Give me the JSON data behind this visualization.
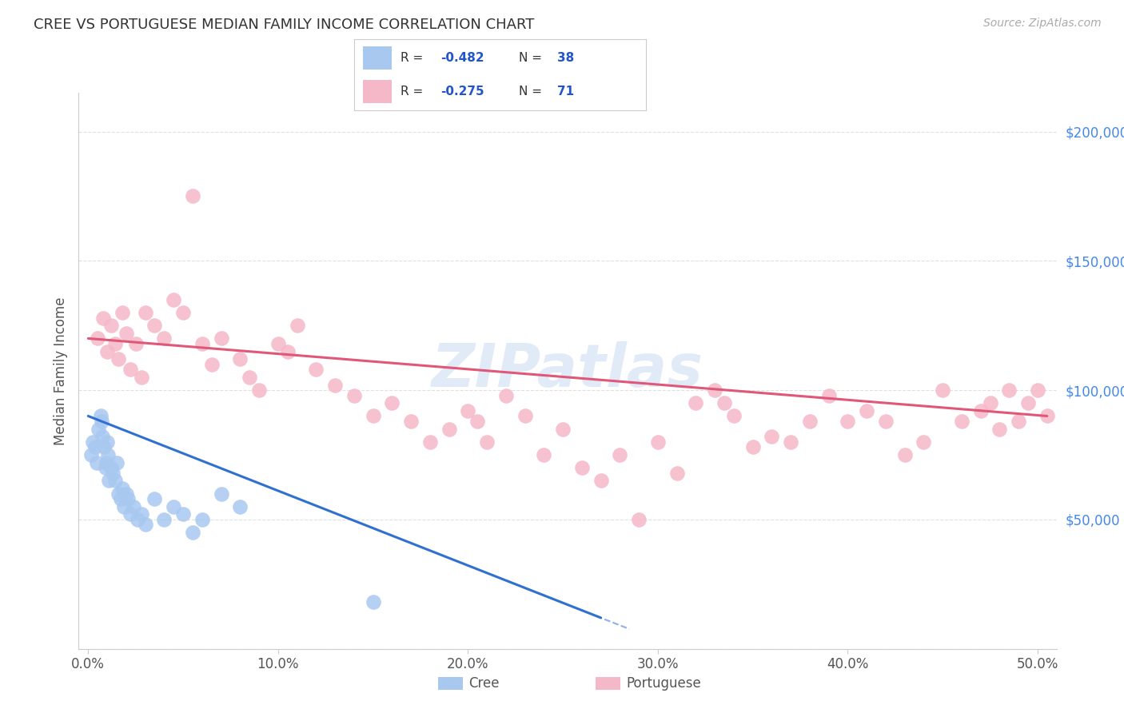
{
  "title": "CREE VS PORTUGUESE MEDIAN FAMILY INCOME CORRELATION CHART",
  "source": "Source: ZipAtlas.com",
  "ylabel": "Median Family Income",
  "xlabel_ticks": [
    "0.0%",
    "10.0%",
    "20.0%",
    "30.0%",
    "40.0%",
    "50.0%"
  ],
  "xlabel_vals": [
    0.0,
    10.0,
    20.0,
    30.0,
    40.0,
    50.0
  ],
  "ytick_vals": [
    0,
    50000,
    100000,
    150000,
    200000
  ],
  "ytick_labels": [
    "",
    "$50,000",
    "$100,000",
    "$150,000",
    "$200,000"
  ],
  "xlim": [
    -0.5,
    51
  ],
  "ylim": [
    0,
    215000
  ],
  "cree_R": -0.482,
  "cree_N": 38,
  "port_R": -0.275,
  "port_N": 71,
  "cree_color": "#a8c8f0",
  "port_color": "#f5b8c8",
  "cree_line_color": "#3070d0",
  "port_line_color": "#e05878",
  "legend_R_color": "#2255cc",
  "watermark": "ZIPatlas",
  "bg_color": "#ffffff",
  "grid_color": "#e0e0e0",
  "cree_x": [
    0.15,
    0.25,
    0.35,
    0.45,
    0.55,
    0.65,
    0.7,
    0.75,
    0.85,
    0.9,
    0.95,
    1.0,
    1.05,
    1.1,
    1.2,
    1.3,
    1.4,
    1.5,
    1.6,
    1.7,
    1.8,
    1.9,
    2.0,
    2.1,
    2.2,
    2.4,
    2.6,
    2.8,
    3.0,
    3.5,
    4.0,
    4.5,
    5.0,
    5.5,
    6.0,
    7.0,
    8.0,
    15.0
  ],
  "cree_y": [
    75000,
    80000,
    78000,
    72000,
    85000,
    90000,
    88000,
    82000,
    78000,
    70000,
    72000,
    80000,
    75000,
    65000,
    70000,
    68000,
    65000,
    72000,
    60000,
    58000,
    62000,
    55000,
    60000,
    58000,
    52000,
    55000,
    50000,
    52000,
    48000,
    58000,
    50000,
    55000,
    52000,
    45000,
    50000,
    60000,
    55000,
    18000
  ],
  "port_x": [
    0.5,
    0.8,
    1.0,
    1.2,
    1.4,
    1.6,
    1.8,
    2.0,
    2.2,
    2.5,
    2.8,
    3.0,
    3.5,
    4.0,
    4.5,
    5.0,
    5.5,
    6.0,
    6.5,
    7.0,
    8.0,
    8.5,
    9.0,
    10.0,
    10.5,
    11.0,
    12.0,
    13.0,
    14.0,
    15.0,
    16.0,
    17.0,
    18.0,
    19.0,
    20.0,
    20.5,
    21.0,
    22.0,
    23.0,
    24.0,
    25.0,
    26.0,
    27.0,
    28.0,
    29.0,
    30.0,
    31.0,
    32.0,
    33.0,
    33.5,
    34.0,
    35.0,
    36.0,
    37.0,
    38.0,
    39.0,
    40.0,
    41.0,
    42.0,
    43.0,
    44.0,
    45.0,
    46.0,
    47.0,
    47.5,
    48.0,
    48.5,
    49.0,
    49.5,
    50.0,
    50.5
  ],
  "port_y": [
    120000,
    128000,
    115000,
    125000,
    118000,
    112000,
    130000,
    122000,
    108000,
    118000,
    105000,
    130000,
    125000,
    120000,
    135000,
    130000,
    175000,
    118000,
    110000,
    120000,
    112000,
    105000,
    100000,
    118000,
    115000,
    125000,
    108000,
    102000,
    98000,
    90000,
    95000,
    88000,
    80000,
    85000,
    92000,
    88000,
    80000,
    98000,
    90000,
    75000,
    85000,
    70000,
    65000,
    75000,
    50000,
    80000,
    68000,
    95000,
    100000,
    95000,
    90000,
    78000,
    82000,
    80000,
    88000,
    98000,
    88000,
    92000,
    88000,
    75000,
    80000,
    100000,
    88000,
    92000,
    95000,
    85000,
    100000,
    88000,
    95000,
    100000,
    90000
  ],
  "cree_line_x0": 0.0,
  "cree_line_x1": 27.0,
  "cree_dash_x0": 22.0,
  "cree_dash_x1": 28.5,
  "port_line_x0": 0.0,
  "port_line_x1": 50.5,
  "cree_line_y0": 90000,
  "cree_line_y1": 12000,
  "port_line_y0": 120000,
  "port_line_y1": 90000
}
